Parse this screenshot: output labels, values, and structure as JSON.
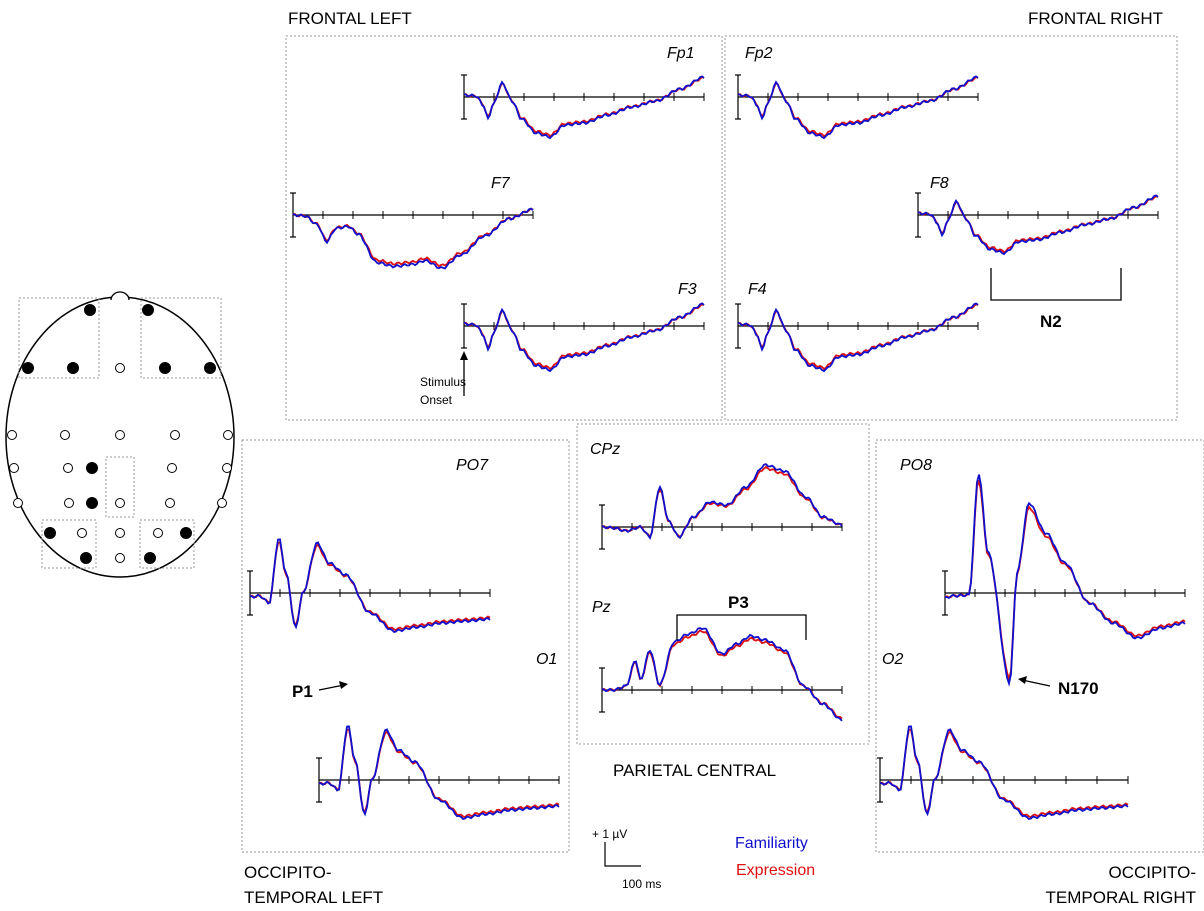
{
  "regions": {
    "frontal_left": "FRONTAL LEFT",
    "frontal_right": "FRONTAL RIGHT",
    "parietal_central": "PARIETAL CENTRAL",
    "occ_left_1": "OCCIPITO-",
    "occ_left_2": "TEMPORAL LEFT",
    "occ_right_1": "OCCIPITO-",
    "occ_right_2": "TEMPORAL RIGHT"
  },
  "electrodes": {
    "Fp1": "Fp1",
    "Fp2": "Fp2",
    "F7": "F7",
    "F8": "F8",
    "F3": "F3",
    "F4": "F4",
    "PO7": "PO7",
    "PO8": "PO8",
    "O1": "O1",
    "O2": "O2",
    "CPz": "CPz",
    "Pz": "Pz"
  },
  "components": {
    "N2": "N2",
    "P3": "P3",
    "P1": "P1",
    "N170": "N170"
  },
  "annotations": {
    "stimulus_1": "Stimulus",
    "stimulus_2": "Onset"
  },
  "scale_bar": {
    "amplitude": "+ 1 µV",
    "time": "100 ms"
  },
  "legend": {
    "familiarity": "Familiarity",
    "expression": "Expression"
  },
  "colors": {
    "familiarity": "#1010cc",
    "expression": "#dd1111"
  },
  "chart_data": {
    "type": "line",
    "xlabel": "",
    "ylabel": "",
    "series": [
      {
        "name": "Familiarity"
      },
      {
        "name": "Expression"
      }
    ]
  }
}
